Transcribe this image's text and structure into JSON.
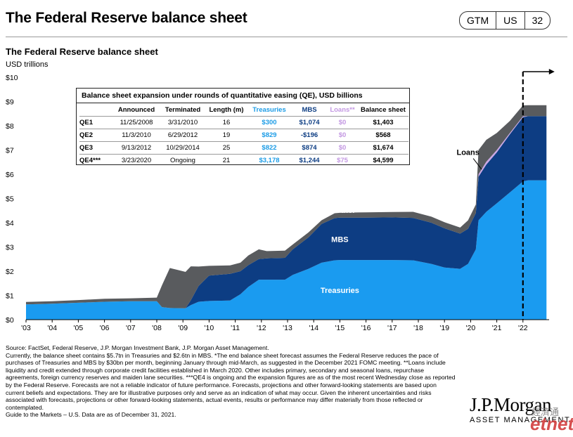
{
  "header": {
    "title": "The Federal Reserve balance sheet",
    "tags": [
      "GTM",
      "US",
      "32"
    ]
  },
  "colors": {
    "treasuries": "#1a9bf0",
    "mbs": "#0d3d83",
    "other": "#595b5e",
    "loans": "#c9a6e6",
    "table_treasuries": "#1c9ce6",
    "table_mbs": "#0d3d83",
    "table_loans": "#c398e2"
  },
  "qe_table": {
    "caption": "Balance sheet expansion under rounds of quantitative easing (QE), USD billions",
    "columns": [
      "",
      "Announced",
      "Terminated",
      "Length (m)",
      "Treasuries",
      "MBS",
      "Loans**",
      "Balance sheet"
    ],
    "rows": [
      [
        "QE1",
        "11/25/2008",
        "3/31/2010",
        "16",
        "$300",
        "$1,074",
        "$0",
        "$1,403"
      ],
      [
        "QE2",
        "11/3/2010",
        "6/29/2012",
        "19",
        "$829",
        "-$196",
        "$0",
        "$568"
      ],
      [
        "QE3",
        "9/13/2012",
        "10/29/2014",
        "25",
        "$822",
        "$874",
        "$0",
        "$1,674"
      ],
      [
        "QE4***",
        "3/23/2020",
        "Ongoing",
        "21",
        "$3,178",
        "$1,244",
        "$75",
        "$4,599"
      ]
    ]
  },
  "chart_data": {
    "type": "area",
    "title": "The Federal Reserve balance sheet",
    "ylabel": "USD trillions",
    "ylim": [
      0,
      10
    ],
    "yticks": [
      "$0",
      "$1",
      "$2",
      "$3",
      "$4",
      "$5",
      "$6",
      "$7",
      "$8",
      "$9",
      "$10"
    ],
    "xlim": [
      2003,
      2023
    ],
    "xticks": [
      {
        "x": 2003,
        "label": "'03"
      },
      {
        "x": 2004,
        "label": "'04"
      },
      {
        "x": 2005,
        "label": "'05"
      },
      {
        "x": 2006,
        "label": "'06"
      },
      {
        "x": 2007,
        "label": "'07"
      },
      {
        "x": 2008,
        "label": "'08"
      },
      {
        "x": 2009,
        "label": "'09"
      },
      {
        "x": 2010,
        "label": "'10"
      },
      {
        "x": 2011,
        "label": "'11"
      },
      {
        "x": 2012,
        "label": "'12"
      },
      {
        "x": 2013,
        "label": "'13"
      },
      {
        "x": 2014,
        "label": "'14"
      },
      {
        "x": 2015,
        "label": "'15"
      },
      {
        "x": 2016,
        "label": "'16"
      },
      {
        "x": 2017,
        "label": "'17"
      },
      {
        "x": 2018,
        "label": "'18"
      },
      {
        "x": 2019,
        "label": "'19"
      },
      {
        "x": 2020,
        "label": "'20"
      },
      {
        "x": 2021,
        "label": "'21"
      },
      {
        "x": 2022,
        "label": "'22"
      }
    ],
    "stacked": true,
    "series": [
      {
        "name": "Treasuries",
        "key": "treasuries",
        "points": [
          [
            2003,
            0.63
          ],
          [
            2004,
            0.66
          ],
          [
            2005,
            0.7
          ],
          [
            2006,
            0.74
          ],
          [
            2007,
            0.76
          ],
          [
            2008.0,
            0.76
          ],
          [
            2008.2,
            0.52
          ],
          [
            2008.5,
            0.48
          ],
          [
            2009.1,
            0.47
          ],
          [
            2009.3,
            0.6
          ],
          [
            2009.6,
            0.74
          ],
          [
            2010.0,
            0.77
          ],
          [
            2010.8,
            0.79
          ],
          [
            2011.2,
            1.05
          ],
          [
            2011.5,
            1.35
          ],
          [
            2011.9,
            1.65
          ],
          [
            2012.2,
            1.65
          ],
          [
            2012.9,
            1.65
          ],
          [
            2013.2,
            1.85
          ],
          [
            2013.8,
            2.1
          ],
          [
            2014.3,
            2.35
          ],
          [
            2014.8,
            2.45
          ],
          [
            2015,
            2.46
          ],
          [
            2016,
            2.46
          ],
          [
            2017,
            2.46
          ],
          [
            2017.8,
            2.45
          ],
          [
            2018.5,
            2.3
          ],
          [
            2019.0,
            2.15
          ],
          [
            2019.6,
            2.1
          ],
          [
            2019.9,
            2.3
          ],
          [
            2020.2,
            2.9
          ],
          [
            2020.3,
            4.1
          ],
          [
            2020.6,
            4.45
          ],
          [
            2021.0,
            4.8
          ],
          [
            2021.5,
            5.25
          ],
          [
            2022.0,
            5.7
          ],
          [
            2022.2,
            5.75
          ],
          [
            2023,
            5.75
          ]
        ]
      },
      {
        "name": "MBS",
        "key": "mbs",
        "points": [
          [
            2003,
            0
          ],
          [
            2008.0,
            0
          ],
          [
            2008.5,
            0
          ],
          [
            2009.1,
            0
          ],
          [
            2009.3,
            0.2
          ],
          [
            2009.6,
            0.65
          ],
          [
            2010.0,
            1.05
          ],
          [
            2010.8,
            1.1
          ],
          [
            2011.2,
            0.95
          ],
          [
            2011.5,
            0.9
          ],
          [
            2011.9,
            0.85
          ],
          [
            2012.2,
            0.88
          ],
          [
            2012.9,
            0.9
          ],
          [
            2013.2,
            1.05
          ],
          [
            2013.8,
            1.3
          ],
          [
            2014.3,
            1.6
          ],
          [
            2014.8,
            1.74
          ],
          [
            2015,
            1.75
          ],
          [
            2016,
            1.75
          ],
          [
            2017,
            1.76
          ],
          [
            2017.8,
            1.75
          ],
          [
            2018.5,
            1.7
          ],
          [
            2019.0,
            1.62
          ],
          [
            2019.6,
            1.45
          ],
          [
            2019.9,
            1.45
          ],
          [
            2020.2,
            1.5
          ],
          [
            2020.3,
            1.8
          ],
          [
            2020.6,
            1.95
          ],
          [
            2021.0,
            2.1
          ],
          [
            2021.5,
            2.4
          ],
          [
            2022.0,
            2.65
          ],
          [
            2022.2,
            2.65
          ],
          [
            2023,
            2.65
          ]
        ]
      },
      {
        "name": "Loans",
        "key": "loans",
        "points": [
          [
            2003,
            0
          ],
          [
            2020.2,
            0
          ],
          [
            2020.3,
            0.1
          ],
          [
            2020.6,
            0.12
          ],
          [
            2021.0,
            0.1
          ],
          [
            2021.5,
            0.05
          ],
          [
            2022.0,
            0.04
          ],
          [
            2022.2,
            0
          ],
          [
            2023,
            0
          ]
        ]
      },
      {
        "name": "Other",
        "key": "other",
        "points": [
          [
            2003,
            0.1
          ],
          [
            2004,
            0.1
          ],
          [
            2005,
            0.11
          ],
          [
            2006,
            0.12
          ],
          [
            2007,
            0.12
          ],
          [
            2008.0,
            0.15
          ],
          [
            2008.2,
            0.9
          ],
          [
            2008.5,
            1.65
          ],
          [
            2009.1,
            1.5
          ],
          [
            2009.3,
            1.4
          ],
          [
            2009.6,
            0.8
          ],
          [
            2010.0,
            0.4
          ],
          [
            2010.8,
            0.35
          ],
          [
            2011.2,
            0.35
          ],
          [
            2011.5,
            0.4
          ],
          [
            2011.9,
            0.4
          ],
          [
            2012.2,
            0.3
          ],
          [
            2012.9,
            0.3
          ],
          [
            2013.2,
            0.2
          ],
          [
            2013.8,
            0.2
          ],
          [
            2014.3,
            0.15
          ],
          [
            2014.8,
            0.2
          ],
          [
            2015,
            0.2
          ],
          [
            2016,
            0.22
          ],
          [
            2017,
            0.22
          ],
          [
            2017.8,
            0.25
          ],
          [
            2018.5,
            0.25
          ],
          [
            2019.0,
            0.25
          ],
          [
            2019.6,
            0.25
          ],
          [
            2019.9,
            0.35
          ],
          [
            2020.2,
            0.35
          ],
          [
            2020.3,
            1.0
          ],
          [
            2020.6,
            0.9
          ],
          [
            2021.0,
            0.7
          ],
          [
            2021.5,
            0.5
          ],
          [
            2022.0,
            0.45
          ],
          [
            2022.2,
            0.45
          ],
          [
            2023,
            0.45
          ]
        ]
      }
    ],
    "annotations": [
      {
        "text": "Treasuries",
        "x": 2015.0,
        "y": 1.1,
        "color": "#ffffff"
      },
      {
        "text": "MBS",
        "x": 2015.0,
        "y": 3.2,
        "color": "#ffffff"
      },
      {
        "text": "Other",
        "x": 2015.2,
        "y": 4.4,
        "color": "#ffffff"
      },
      {
        "text": "Loans",
        "x": 2019.9,
        "y": 6.8,
        "color": "#000000"
      }
    ],
    "forecast_line": {
      "x": 2022.0,
      "arrow": "right"
    },
    "grid": false,
    "legend": "none"
  },
  "footnotes": {
    "source": "Source: FactSet, Federal Reserve, J.P. Morgan Investment Bank, J.P. Morgan Asset Management.",
    "body": "Currently, the balance sheet contains $5.7tn in Treasuries and $2.6tn in MBS. *The end balance sheet forecast assumes the Federal Reserve reduces the pace of purchases of Treasuries and MBS by $30bn per month, beginning January through mid-March, as suggested in the December 2021 FOMC meeting. **Loans include liquidity and credit extended through corporate credit facilities established in March 2020. Other includes primary, secondary and seasonal loans, repurchase agreements, foreign currency reserves and maiden lane securities. ***QE4 is ongoing and the expansion figures are as of the most recent Wednesday close as reported by the Federal Reserve. Forecasts are not a reliable indicator of future performance. Forecasts, projections and other forward-looking statements are based upon current beliefs and expectations. They are for illustrative purposes only and serve as an indication of what may occur. Given the inherent uncertainties and risks associated with forecasts, projections or other forward-looking statements, actual events, results or performance may differ materially from those reflected or contemplated.",
    "guide": "Guide to the Markets – U.S. Data are as of December 31, 2021."
  },
  "logo": {
    "name": "J.P.Morgan",
    "sub": "ASSET MANAGEMENT",
    "watermark": "etnet",
    "watermark_cn": "經濟通"
  }
}
